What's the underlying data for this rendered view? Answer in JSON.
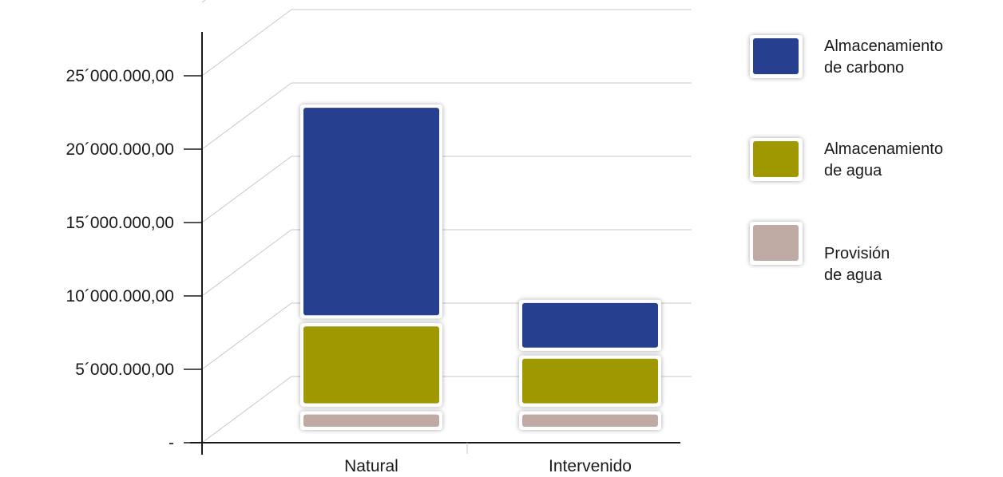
{
  "chart_data": {
    "type": "bar",
    "stacked": true,
    "categories": [
      "Natural",
      "Intervenido"
    ],
    "series": [
      {
        "name": "Provisión de agua",
        "legend_lines": [
          "Provisión",
          "de agua"
        ],
        "color": "#bfaba3",
        "values": [
          2300000,
          2300000
        ]
      },
      {
        "name": "Almacenamiento de agua",
        "legend_lines": [
          "Almacenamiento",
          "de agua"
        ],
        "color": "#a09800",
        "values": [
          6000000,
          3800000
        ]
      },
      {
        "name": "Almacenamiento de carbono",
        "legend_lines": [
          "Almacenamiento",
          "de carbono"
        ],
        "color": "#263f8e",
        "values": [
          14900000,
          3800000
        ]
      }
    ],
    "ylim": [
      0,
      25000000
    ],
    "y_ticks": [
      0,
      5000000,
      10000000,
      15000000,
      20000000,
      25000000
    ],
    "y_tick_labels": [
      "-",
      "5´000.000,00",
      "10´000.000,00",
      "15´000.000,00",
      "20´000.000,00",
      "25´000.000,00"
    ],
    "grid": true,
    "legend_position": "right",
    "title": "",
    "xlabel": "",
    "ylabel": ""
  }
}
